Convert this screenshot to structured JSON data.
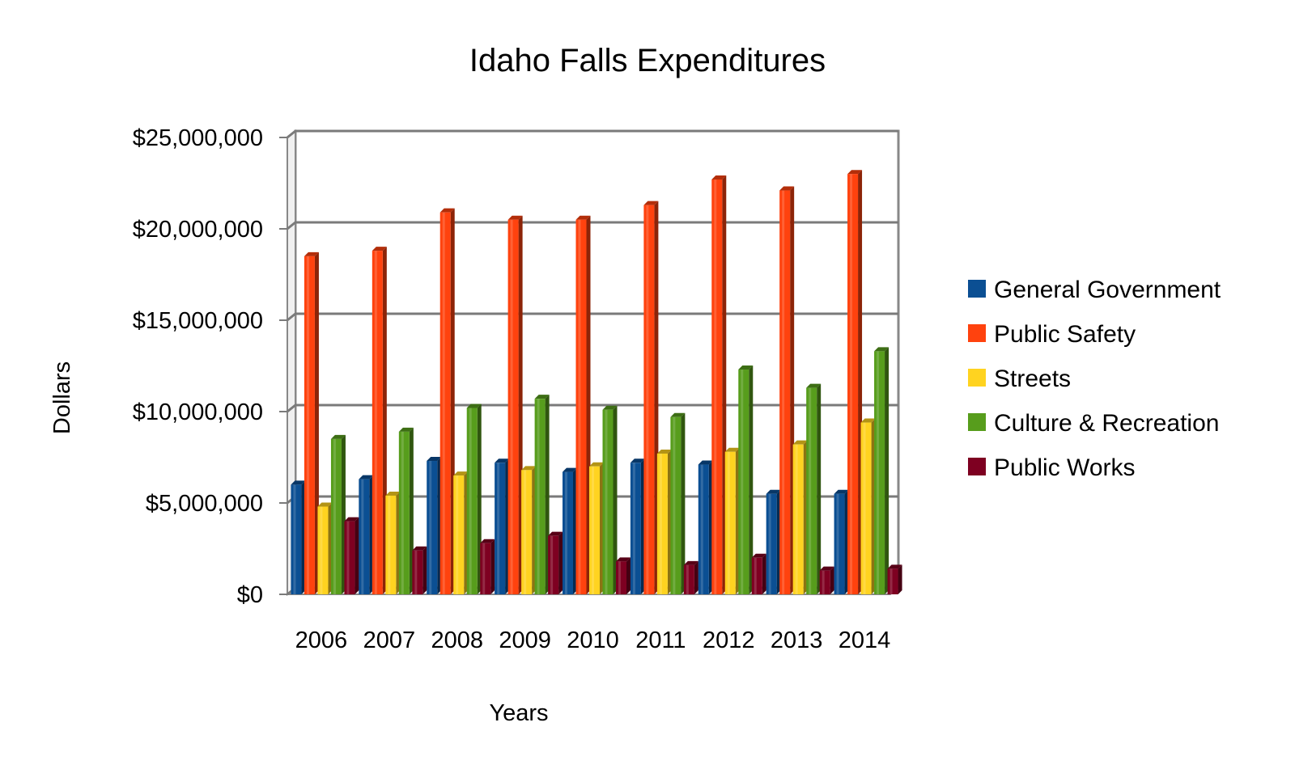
{
  "chart_data": {
    "type": "bar",
    "title": "Idaho Falls Expenditures",
    "xlabel": "Years",
    "ylabel": "Dollars",
    "ylim": [
      0,
      25000000
    ],
    "y_ticks": [
      "$0",
      "$5,000,000",
      "$10,000,000",
      "$15,000,000",
      "$20,000,000",
      "$25,000,000"
    ],
    "grid": true,
    "legend_position": "right",
    "categories": [
      "2006",
      "2007",
      "2008",
      "2009",
      "2010",
      "2011",
      "2012",
      "2013",
      "2014"
    ],
    "series": [
      {
        "name": "General Government",
        "color": "#0b4f93",
        "values": [
          6000000,
          6300000,
          7300000,
          7200000,
          6700000,
          7200000,
          7100000,
          5500000,
          5500000
        ]
      },
      {
        "name": "Public Safety",
        "color": "#ff420e",
        "values": [
          18500000,
          18800000,
          20900000,
          20500000,
          20500000,
          21300000,
          22700000,
          22100000,
          23000000
        ]
      },
      {
        "name": "Streets",
        "color": "#ffd320",
        "values": [
          4800000,
          5400000,
          6500000,
          6800000,
          7000000,
          7700000,
          7800000,
          8200000,
          9400000
        ]
      },
      {
        "name": "Culture & Recreation",
        "color": "#579d1c",
        "values": [
          8500000,
          8900000,
          10200000,
          10700000,
          10100000,
          9700000,
          12300000,
          11300000,
          13300000
        ]
      },
      {
        "name": "Public Works",
        "color": "#7e0021",
        "values": [
          4000000,
          2400000,
          2800000,
          3200000,
          1800000,
          1600000,
          2000000,
          1300000,
          1400000
        ]
      }
    ]
  }
}
